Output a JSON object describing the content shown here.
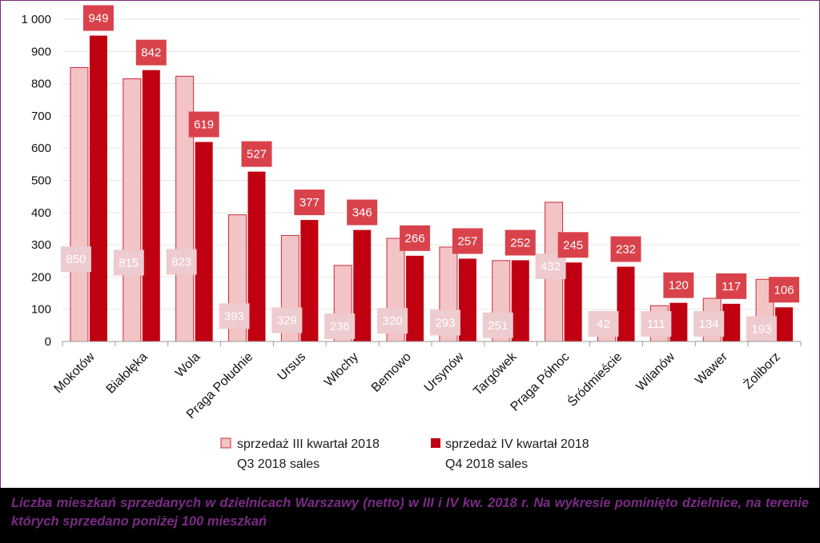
{
  "chart_data": {
    "type": "bar",
    "title": "",
    "xlabel": "",
    "ylabel": "",
    "ylim": [
      0,
      1000
    ],
    "yticks": [
      0,
      100,
      200,
      300,
      400,
      500,
      600,
      700,
      800,
      900,
      1000
    ],
    "ytick_labels": [
      "0",
      "100",
      "200",
      "300",
      "400",
      "500",
      "600",
      "700",
      "800",
      "900",
      "1 000"
    ],
    "grid": true,
    "categories": [
      "Mokotów",
      "Białołęka",
      "Wola",
      "Praga Południe",
      "Ursus",
      "Włochy",
      "Bemowo",
      "Ursynów",
      "Targówek",
      "Praga Północ",
      "Śródmieście",
      "Wilanów",
      "Wawer",
      "Żoliborz"
    ],
    "series": [
      {
        "name": "sprzedaż III kwartał 2018",
        "name_en": "Q3 2018 sales",
        "color": "#f2c4c6",
        "stroke": "#cc2a36",
        "label_color": "#eecbce",
        "values": [
          850,
          815,
          823,
          393,
          329,
          236,
          320,
          293,
          251,
          432,
          42,
          111,
          134,
          193
        ]
      },
      {
        "name": "sprzedaż IV kwartał 2018",
        "name_en": "Q4 2018 sales",
        "color": "#c00010",
        "stroke": "#c00010",
        "label_color": "#d9424b",
        "values": [
          949,
          842,
          619,
          527,
          377,
          346,
          266,
          257,
          252,
          245,
          232,
          120,
          117,
          106
        ]
      }
    ],
    "legend_position": "bottom"
  },
  "caption": "Liczba mieszkań sprzedanych w dzielnicach Warszawy (netto) w III i IV kw. 2018 r. Na wykresie pominięto dzielnice, na terenie których sprzedano poniżej 100 mieszkań",
  "colors": {
    "caption_background": "#000000",
    "caption_text": "#7b2a86",
    "grid": "#e6e6e6"
  }
}
